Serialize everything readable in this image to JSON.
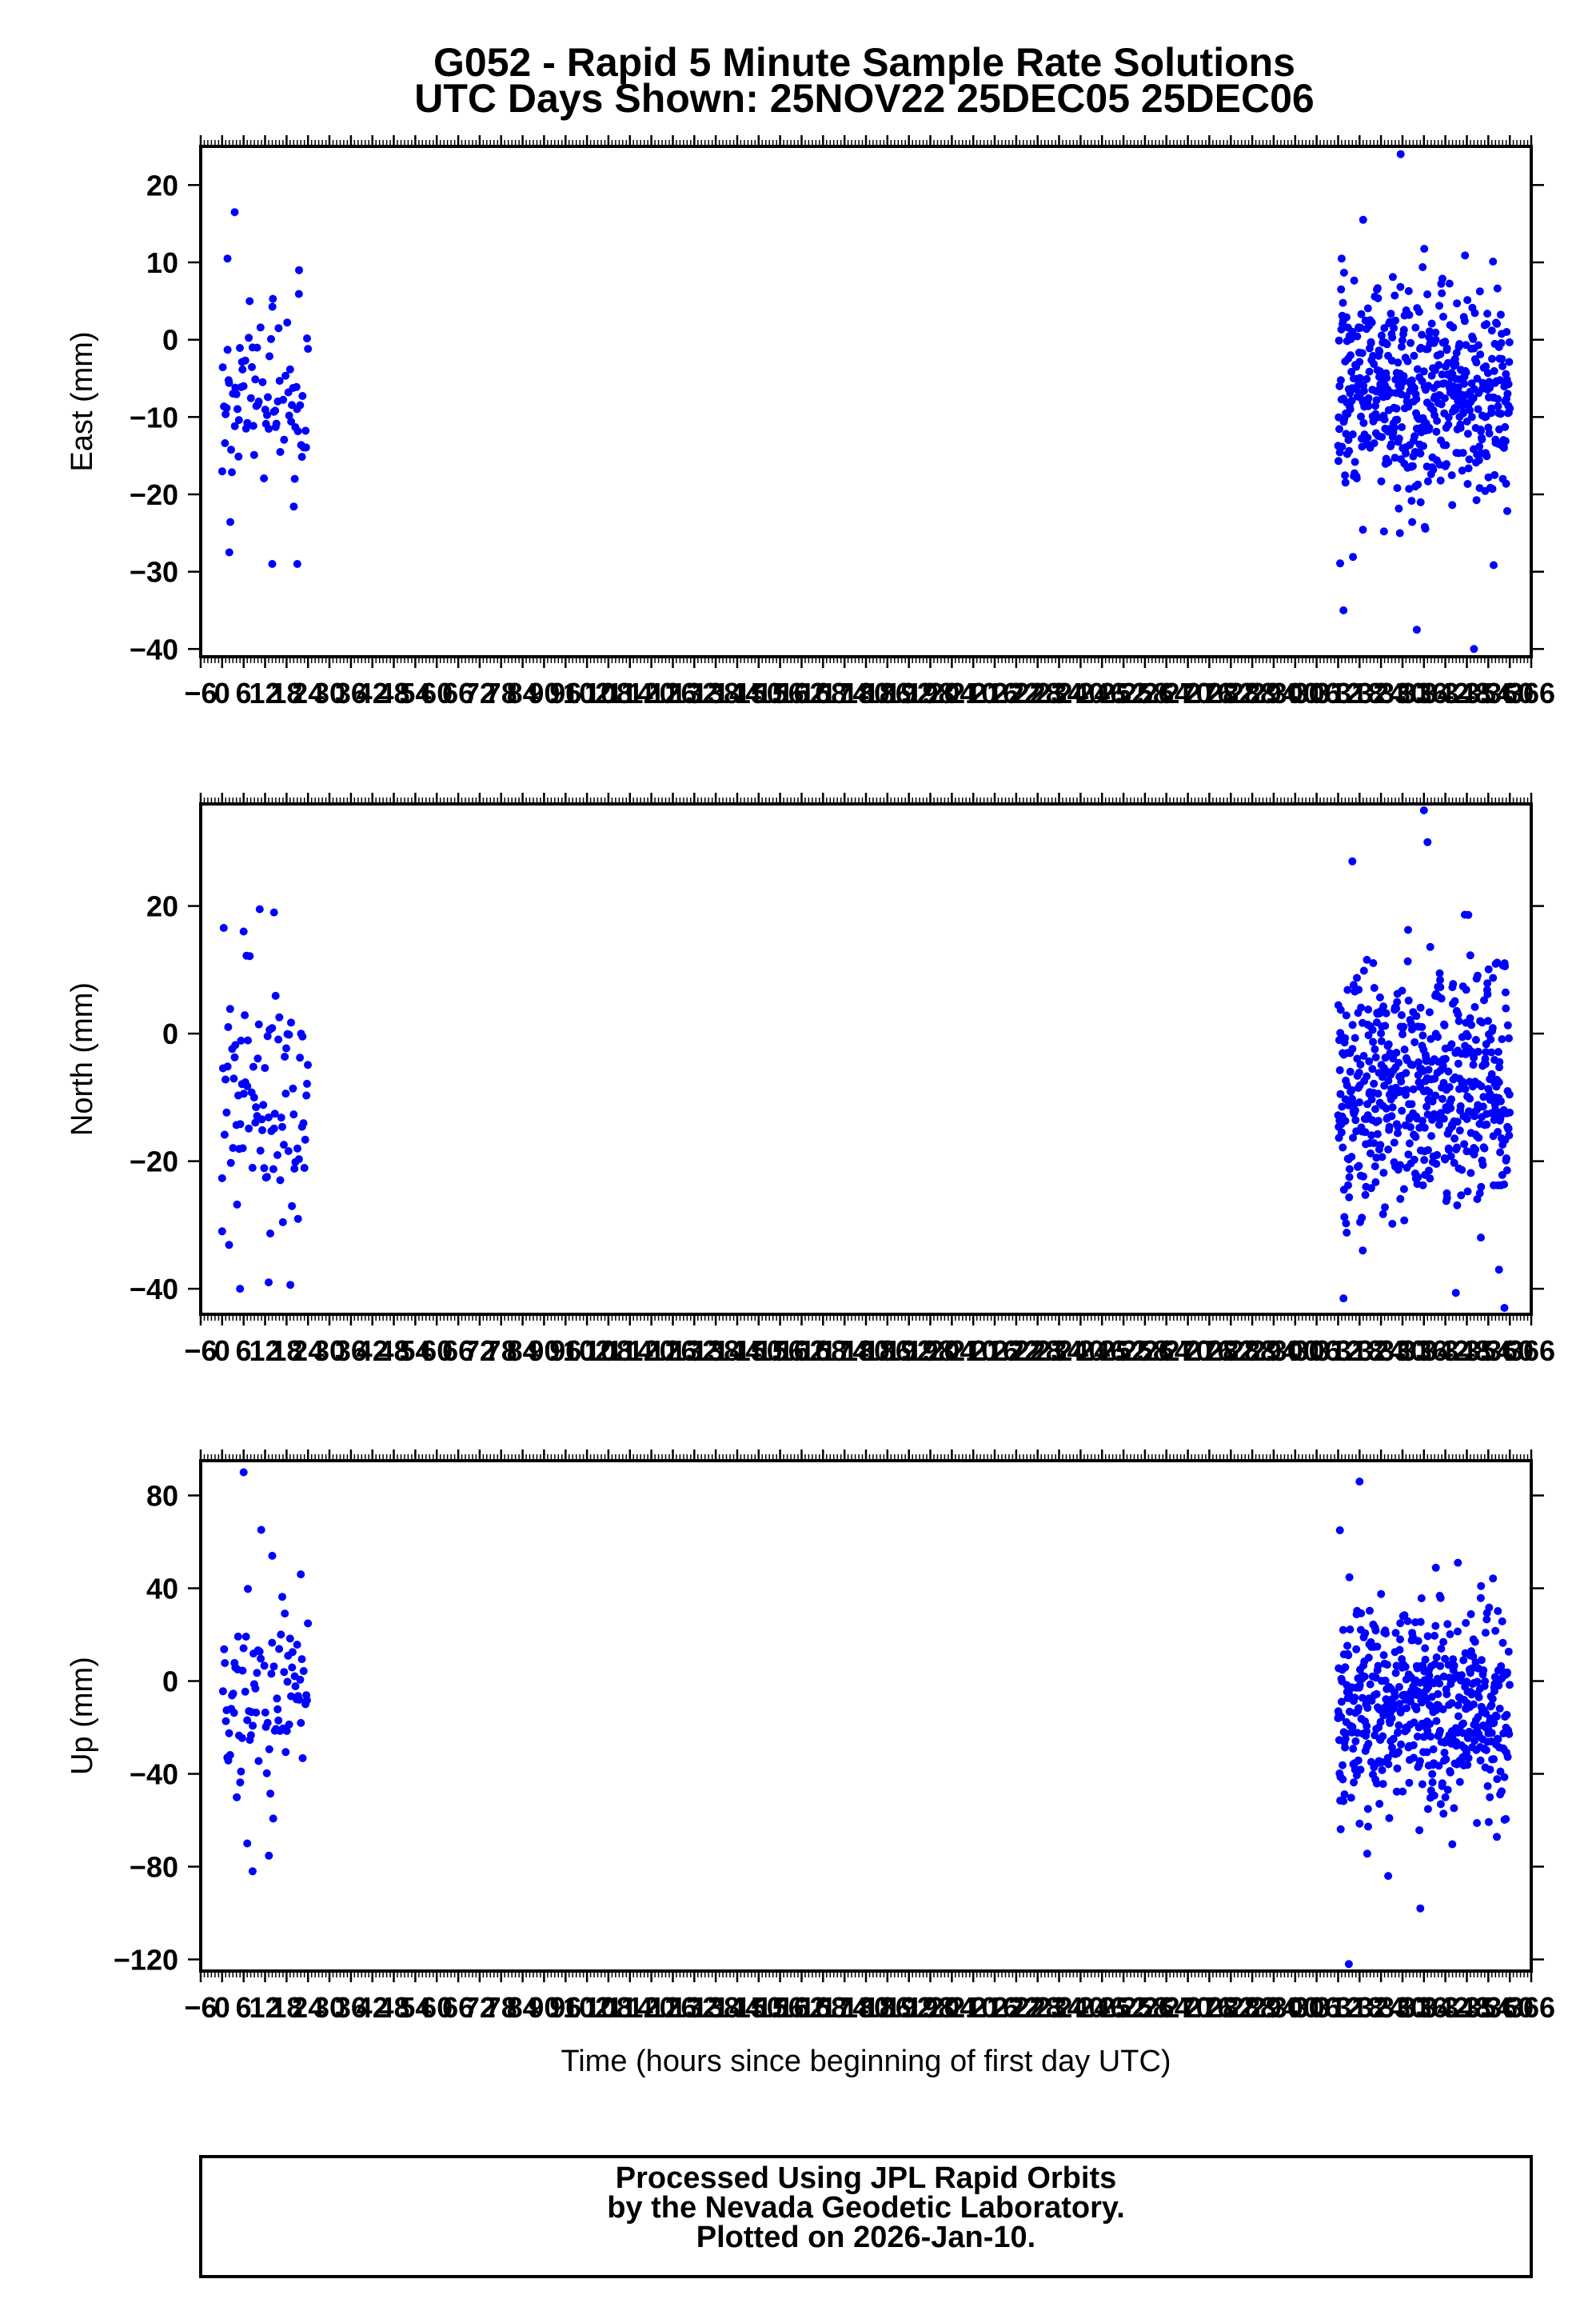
{
  "header": {
    "title": "G052 - Rapid 5 Minute Sample Rate Solutions",
    "subtitle": "UTC Days Shown:  25NOV22 25DEC05 25DEC06"
  },
  "footer": {
    "lines": [
      "Processed Using JPL Rapid Orbits",
      "by the Nevada Geodetic Laboratory.",
      "Plotted on 2026-Jan-10."
    ]
  },
  "colors": {
    "points": "#0000ff",
    "axes": "#000000",
    "background": "#ffffff"
  },
  "chart_data": [
    {
      "type": "scatter",
      "ylabel": "East (mm)",
      "xlabel": "",
      "xlim": [
        -6,
        366
      ],
      "ylim": [
        -41,
        25
      ],
      "yticks": [
        20,
        10,
        0,
        -10,
        -20,
        -30,
        -40
      ],
      "ytick_labels": [
        "20",
        "10",
        "0",
        "−10",
        "−20",
        "−30",
        "−40"
      ],
      "xticks": [
        -6,
        0,
        6,
        12,
        18,
        24,
        30,
        36,
        42,
        48,
        54,
        60,
        66,
        72,
        78,
        84,
        90,
        96,
        102,
        108,
        114,
        120,
        126,
        132,
        138,
        144,
        150,
        156,
        162,
        168,
        174,
        180,
        186,
        192,
        198,
        204,
        210,
        216,
        222,
        228,
        234,
        240,
        246,
        252,
        258,
        264,
        270,
        276,
        282,
        288,
        294,
        300,
        306,
        312,
        318,
        324,
        330,
        336,
        342,
        348,
        354,
        360,
        366
      ],
      "xtick_labels": [
        "−6",
        "0",
        "6",
        "12",
        "18",
        "24",
        "30",
        "36",
        "42",
        "48",
        "54",
        "60",
        "66",
        "72",
        "78",
        "84",
        "90",
        "96",
        "102",
        "108",
        "114",
        "120",
        "126",
        "132",
        "138",
        "144",
        "150",
        "156",
        "162",
        "168",
        "174",
        "180",
        "186",
        "192",
        "198",
        "204",
        "210",
        "216",
        "222",
        "228",
        "234",
        "240",
        "246",
        "252",
        "258",
        "264",
        "270",
        "276",
        "282",
        "288",
        "294",
        "300",
        "306",
        "312",
        "318",
        "324",
        "330",
        "336",
        "342",
        "348",
        "354",
        "360",
        "366"
      ],
      "segments": [
        {
          "x_start": 0,
          "x_end": 24,
          "x_step": 0.25,
          "mean": -8,
          "sd": 6.5
        },
        {
          "x_start": 312,
          "x_end": 360,
          "x_step": 0.0833,
          "mean": -7.5,
          "sd": 7
        }
      ],
      "notable_points": [
        {
          "x": 3.5,
          "y": 16.5
        },
        {
          "x": 1.5,
          "y": 10.5
        },
        {
          "x": 21.5,
          "y": 9.0
        },
        {
          "x": 2.0,
          "y": -27.5
        },
        {
          "x": 14.0,
          "y": -29.0
        },
        {
          "x": 21.0,
          "y": -29.0
        },
        {
          "x": 329.5,
          "y": 24.0
        },
        {
          "x": 319.0,
          "y": 15.5
        },
        {
          "x": 313.0,
          "y": 10.5
        },
        {
          "x": 313.5,
          "y": -35.0
        },
        {
          "x": 334.0,
          "y": -37.5
        },
        {
          "x": 350.0,
          "y": -40.0
        }
      ]
    },
    {
      "type": "scatter",
      "ylabel": "North (mm)",
      "xlabel": "",
      "xlim": [
        -6,
        366
      ],
      "ylim": [
        -44,
        36
      ],
      "yticks": [
        20,
        0,
        -20,
        -40
      ],
      "ytick_labels": [
        "20",
        "0",
        "−20",
        "−40"
      ],
      "xticks": [
        -6,
        0,
        6,
        12,
        18,
        24,
        30,
        36,
        42,
        48,
        54,
        60,
        66,
        72,
        78,
        84,
        90,
        96,
        102,
        108,
        114,
        120,
        126,
        132,
        138,
        144,
        150,
        156,
        162,
        168,
        174,
        180,
        186,
        192,
        198,
        204,
        210,
        216,
        222,
        228,
        234,
        240,
        246,
        252,
        258,
        264,
        270,
        276,
        282,
        288,
        294,
        300,
        306,
        312,
        318,
        324,
        330,
        336,
        342,
        348,
        354,
        360,
        366
      ],
      "xtick_labels": [
        "−6",
        "0",
        "6",
        "12",
        "18",
        "24",
        "30",
        "36",
        "42",
        "48",
        "54",
        "60",
        "66",
        "72",
        "78",
        "84",
        "90",
        "96",
        "102",
        "108",
        "114",
        "120",
        "126",
        "132",
        "138",
        "144",
        "150",
        "156",
        "162",
        "168",
        "174",
        "180",
        "186",
        "192",
        "198",
        "204",
        "210",
        "216",
        "222",
        "228",
        "234",
        "240",
        "246",
        "252",
        "258",
        "264",
        "270",
        "276",
        "282",
        "288",
        "294",
        "300",
        "306",
        "312",
        "318",
        "324",
        "330",
        "336",
        "342",
        "348",
        "354",
        "360",
        "366"
      ],
      "segments": [
        {
          "x_start": 0,
          "x_end": 24,
          "x_step": 0.25,
          "mean": -11,
          "sd": 10
        },
        {
          "x_start": 312,
          "x_end": 360,
          "x_step": 0.0833,
          "mean": -9,
          "sd": 10
        }
      ],
      "notable_points": [
        {
          "x": 10.5,
          "y": 19.5
        },
        {
          "x": 14.5,
          "y": 19.0
        },
        {
          "x": 6.0,
          "y": 16.0
        },
        {
          "x": 5.0,
          "y": -40.0
        },
        {
          "x": 13.0,
          "y": -39.0
        },
        {
          "x": 0.0,
          "y": -31.0
        },
        {
          "x": 336.0,
          "y": 35.0
        },
        {
          "x": 337.0,
          "y": 30.0
        },
        {
          "x": 316.0,
          "y": 27.0
        },
        {
          "x": 313.5,
          "y": -41.5
        },
        {
          "x": 358.5,
          "y": -43.0
        },
        {
          "x": 357.0,
          "y": -37.0
        }
      ]
    },
    {
      "type": "scatter",
      "ylabel": "Up (mm)",
      "xlabel": "Time (hours since beginning of first day UTC)",
      "xlim": [
        -6,
        366
      ],
      "ylim": [
        -125,
        95
      ],
      "yticks": [
        80,
        40,
        0,
        -40,
        -80,
        -120
      ],
      "ytick_labels": [
        "80",
        "40",
        "0",
        "−40",
        "−80",
        "−120"
      ],
      "xticks": [
        -6,
        0,
        6,
        12,
        18,
        24,
        30,
        36,
        42,
        48,
        54,
        60,
        66,
        72,
        78,
        84,
        90,
        96,
        102,
        108,
        114,
        120,
        126,
        132,
        138,
        144,
        150,
        156,
        162,
        168,
        174,
        180,
        186,
        192,
        198,
        204,
        210,
        216,
        222,
        228,
        234,
        240,
        246,
        252,
        258,
        264,
        270,
        276,
        282,
        288,
        294,
        300,
        306,
        312,
        318,
        324,
        330,
        336,
        342,
        348,
        354,
        360,
        366
      ],
      "xtick_labels": [
        "−6",
        "0",
        "6",
        "12",
        "18",
        "24",
        "30",
        "36",
        "42",
        "48",
        "54",
        "60",
        "66",
        "72",
        "78",
        "84",
        "90",
        "96",
        "102",
        "108",
        "114",
        "120",
        "126",
        "132",
        "138",
        "144",
        "150",
        "156",
        "162",
        "168",
        "174",
        "180",
        "186",
        "192",
        "198",
        "204",
        "210",
        "216",
        "222",
        "228",
        "234",
        "240",
        "246",
        "252",
        "258",
        "264",
        "270",
        "276",
        "282",
        "288",
        "294",
        "300",
        "306",
        "312",
        "318",
        "324",
        "330",
        "336",
        "342",
        "348",
        "354",
        "360",
        "366"
      ],
      "segments": [
        {
          "x_start": 0,
          "x_end": 24,
          "x_step": 0.25,
          "mean": -10,
          "sd": 22
        },
        {
          "x_start": 312,
          "x_end": 360,
          "x_step": 0.0833,
          "mean": -12,
          "sd": 22
        }
      ],
      "notable_points": [
        {
          "x": 6.0,
          "y": 90.0
        },
        {
          "x": 14.0,
          "y": 54.0
        },
        {
          "x": 22.0,
          "y": 46.0
        },
        {
          "x": 8.5,
          "y": -82.0
        },
        {
          "x": 7.0,
          "y": -70.0
        },
        {
          "x": 318.0,
          "y": 86.0
        },
        {
          "x": 312.5,
          "y": 65.0
        },
        {
          "x": 345.5,
          "y": 51.0
        },
        {
          "x": 315.0,
          "y": -122.0
        },
        {
          "x": 335.0,
          "y": -98.0
        },
        {
          "x": 326.0,
          "y": -84.0
        }
      ]
    }
  ]
}
